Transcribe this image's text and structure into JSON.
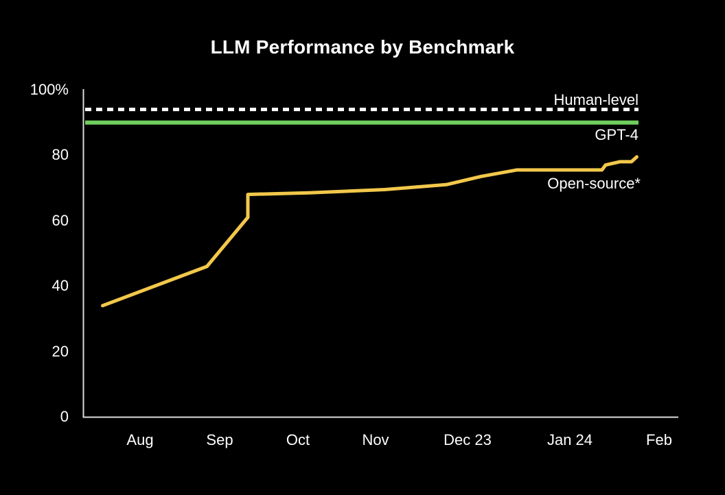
{
  "chart_data": {
    "type": "line",
    "title": "LLM Performance by Benchmark",
    "grid": false,
    "legend_position": "inline-annotations",
    "y_axis": {
      "ylim": [
        0,
        100
      ],
      "unit": "%",
      "tick_values": [
        0,
        20,
        40,
        60,
        80,
        100
      ],
      "tick_labels": [
        "0",
        "20",
        "40",
        "60",
        "80",
        "100%"
      ]
    },
    "x_axis": {
      "tick_labels": [
        "Aug",
        "Sep",
        "Oct",
        "Nov",
        "Dec 23",
        "Jan 24",
        "Feb"
      ],
      "x_unit": "month ticks, 1 = Aug 2023 ... 7 = Feb 2024",
      "range_note": "data starts mid-July 2023"
    },
    "series": [
      {
        "name": "Open-source*",
        "color": "#F2C84B",
        "points": [
          {
            "x": 0.53,
            "y": 34
          },
          {
            "x": 1.84,
            "y": 46
          },
          {
            "x": 2.36,
            "y": 61
          },
          {
            "x": 2.36,
            "y": 68
          },
          {
            "x": 3.14,
            "y": 68.5
          },
          {
            "x": 4.1,
            "y": 69.5
          },
          {
            "x": 4.54,
            "y": 70.5
          },
          {
            "x": 4.77,
            "y": 71
          },
          {
            "x": 5.13,
            "y": 73.5
          },
          {
            "x": 5.48,
            "y": 75.5
          },
          {
            "x": 6.36,
            "y": 75.5
          },
          {
            "x": 6.4,
            "y": 77
          },
          {
            "x": 6.56,
            "y": 78
          },
          {
            "x": 6.69,
            "y": 78
          },
          {
            "x": 6.75,
            "y": 79.5
          }
        ]
      }
    ],
    "reference_lines": [
      {
        "label": "Human-level",
        "value": 94,
        "style": "dotted",
        "color": "#FFFFFF"
      },
      {
        "label": "GPT-4",
        "value": 90,
        "style": "solid",
        "color": "#6FCE5E"
      }
    ],
    "annotations": [
      {
        "text": "Human-level"
      },
      {
        "text": "GPT-4"
      },
      {
        "text": "Open-source*"
      }
    ]
  },
  "colors": {
    "background": "#000000",
    "text": "#FFFFFF",
    "axis": "#DCDCDC",
    "open_source_line": "#F2C84B",
    "gpt4_line": "#6FCE5E",
    "human_level_line": "#FFFFFF"
  }
}
